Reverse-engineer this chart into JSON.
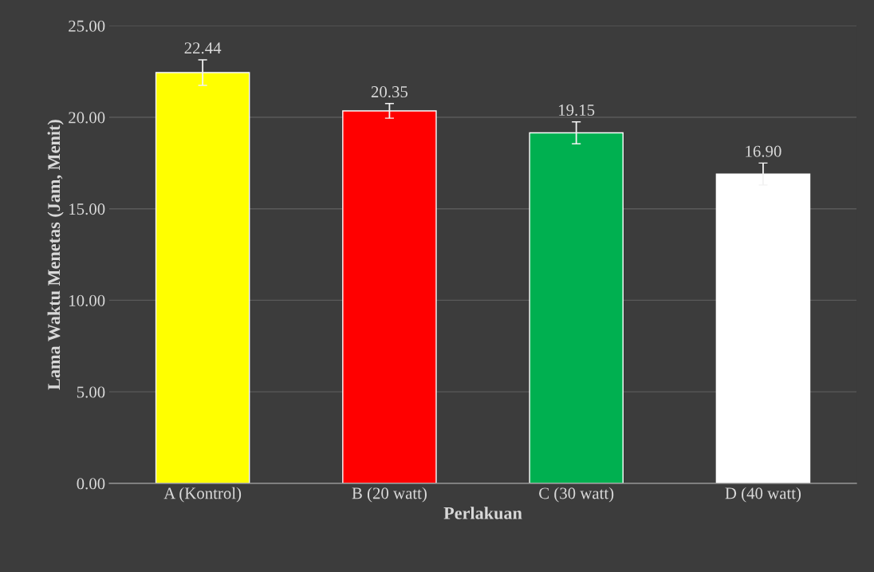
{
  "chart_data": {
    "type": "bar",
    "xlabel": "Perlakuan",
    "ylabel": "Lama Waktu Menetas (Jam, Menit)",
    "categories": [
      "A (Kontrol)",
      "B (20 watt)",
      "C (30 watt)",
      "D (40 watt)"
    ],
    "values": [
      22.44,
      20.35,
      19.15,
      16.9
    ],
    "value_labels": [
      "22.44",
      "20.35",
      "19.15",
      "16.90"
    ],
    "colors": [
      "#ffff00",
      "#ff0000",
      "#00b050",
      "#ffffff"
    ],
    "errors": [
      0.7,
      0.4,
      0.6,
      0.6
    ],
    "ylim": [
      0,
      25
    ],
    "yticks": [
      {
        "value": 0,
        "label": "0.00"
      },
      {
        "value": 5,
        "label": "5.00"
      },
      {
        "value": 10,
        "label": "10.00"
      },
      {
        "value": 15,
        "label": "15.00"
      },
      {
        "value": 20,
        "label": "20.00"
      },
      {
        "value": 25,
        "label": "25.00"
      }
    ],
    "grid": "y",
    "legend": false
  }
}
